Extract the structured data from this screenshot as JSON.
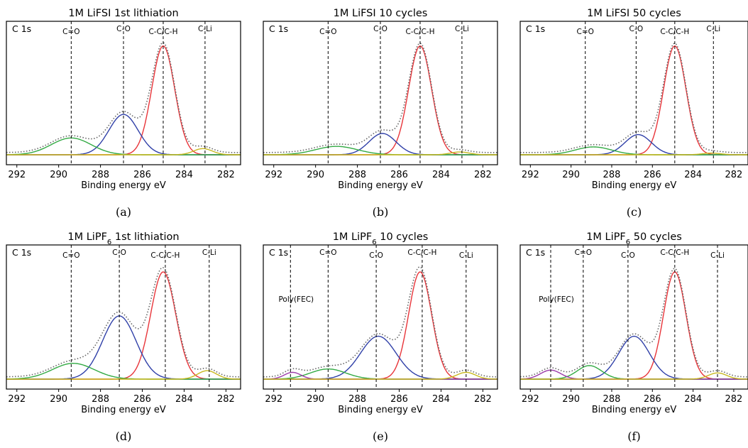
{
  "chart_data": [
    {
      "type": "line",
      "title": "1M LiFSI 1st lithiation",
      "caption": "(a)",
      "corner_label": "C 1s",
      "xlabel": "Binding energy eV",
      "xlim": [
        292.5,
        281.3
      ],
      "x_ticks": [
        "292",
        "290",
        "288",
        "286",
        "284",
        "282"
      ],
      "y_max": 1.0,
      "peak_lines": [
        {
          "label": "C=O",
          "x": 289.4
        },
        {
          "label": "C-O",
          "x": 286.9
        },
        {
          "label": "C-C/C-H",
          "x": 285.0
        },
        {
          "label": "C-Li",
          "x": 283.0
        }
      ],
      "series": [
        {
          "component": "C-C/C-H",
          "color": "#e8353a",
          "center": 285.0,
          "height": 0.97,
          "width": 0.55
        },
        {
          "component": "C-O",
          "color": "#3040a8",
          "center": 286.9,
          "height": 0.36,
          "width": 0.7
        },
        {
          "component": "C=O",
          "color": "#33aa44",
          "center": 289.4,
          "height": 0.15,
          "width": 0.95
        },
        {
          "component": "C-Li",
          "color": "#c8b820",
          "center": 283.1,
          "height": 0.055,
          "width": 0.45
        }
      ]
    },
    {
      "type": "line",
      "title": "1M LiFSI 10 cycles",
      "caption": "(b)",
      "corner_label": "C 1s",
      "xlabel": "Binding energy eV",
      "xlim": [
        292.5,
        281.3
      ],
      "x_ticks": [
        "292",
        "290",
        "288",
        "286",
        "284",
        "282"
      ],
      "y_max": 1.0,
      "peak_lines": [
        {
          "label": "C=O",
          "x": 289.4
        },
        {
          "label": "C-O",
          "x": 286.9
        },
        {
          "label": "C-C/C-H",
          "x": 285.0
        },
        {
          "label": "C-Li",
          "x": 283.0
        }
      ],
      "series": [
        {
          "component": "C-C/C-H",
          "color": "#e8353a",
          "center": 285.0,
          "height": 0.97,
          "width": 0.55
        },
        {
          "component": "C-O",
          "color": "#3040a8",
          "center": 286.8,
          "height": 0.19,
          "width": 0.65
        },
        {
          "component": "C=O",
          "color": "#33aa44",
          "center": 289.0,
          "height": 0.075,
          "width": 1.0
        },
        {
          "component": "C-Li",
          "color": "#c8b820",
          "center": 283.1,
          "height": 0.025,
          "width": 0.45
        }
      ]
    },
    {
      "type": "line",
      "title": "1M LiFSI 50 cycles",
      "caption": "(c)",
      "corner_label": "C 1s",
      "xlabel": "Binding energy eV",
      "xlim": [
        292.5,
        281.3
      ],
      "x_ticks": [
        "292",
        "290",
        "288",
        "286",
        "284",
        "282"
      ],
      "y_max": 1.0,
      "peak_lines": [
        {
          "label": "C=O",
          "x": 289.3
        },
        {
          "label": "C-O",
          "x": 286.8
        },
        {
          "label": "C-C/C-H",
          "x": 284.9
        },
        {
          "label": "C-Li",
          "x": 283.0
        }
      ],
      "series": [
        {
          "component": "C-C/C-H",
          "color": "#e8353a",
          "center": 284.9,
          "height": 0.97,
          "width": 0.55
        },
        {
          "component": "C-O",
          "color": "#3040a8",
          "center": 286.7,
          "height": 0.18,
          "width": 0.65
        },
        {
          "component": "C=O",
          "color": "#33aa44",
          "center": 288.9,
          "height": 0.07,
          "width": 0.9
        },
        {
          "component": "C-Li",
          "color": "#c8b820",
          "center": 283.1,
          "height": 0.015,
          "width": 0.45
        }
      ]
    },
    {
      "type": "line",
      "title": "1M LiPF",
      "title_sub": "6",
      "title_suffix": " 1st lithiation",
      "caption": "(d)",
      "corner_label": "C 1s",
      "xlabel": "Binding energy eV",
      "xlim": [
        292.5,
        281.3
      ],
      "x_ticks": [
        "292",
        "290",
        "288",
        "286",
        "284",
        "282"
      ],
      "y_max": 1.0,
      "peak_lines": [
        {
          "label": "C=O",
          "x": 289.4
        },
        {
          "label": "C-O",
          "x": 287.1
        },
        {
          "label": "C-C/C-H",
          "x": 284.9
        },
        {
          "label": "C-Li",
          "x": 282.8
        }
      ],
      "series": [
        {
          "component": "C-C/C-H",
          "color": "#e8353a",
          "center": 285.0,
          "height": 0.95,
          "width": 0.6
        },
        {
          "component": "C-O",
          "color": "#3040a8",
          "center": 287.1,
          "height": 0.56,
          "width": 0.8
        },
        {
          "component": "C=O",
          "color": "#33aa44",
          "center": 289.3,
          "height": 0.14,
          "width": 1.0
        },
        {
          "component": "C-Li",
          "color": "#c8b820",
          "center": 282.9,
          "height": 0.075,
          "width": 0.45
        }
      ]
    },
    {
      "type": "line",
      "title": "1M LiPF",
      "title_sub": "6",
      "title_suffix": " 10 cycles",
      "caption": "(e)",
      "corner_label": "C 1s",
      "xlabel": "Binding energy eV",
      "xlim": [
        292.5,
        281.3
      ],
      "x_ticks": [
        "292",
        "290",
        "288",
        "286",
        "284",
        "282"
      ],
      "y_max": 1.0,
      "peak_lines": [
        {
          "label": "Poly(FEC)",
          "x": 291.2
        },
        {
          "label": "C=O",
          "x": 289.4
        },
        {
          "label": "C-O",
          "x": 287.1
        },
        {
          "label": "C-C/C-H",
          "x": 284.9
        },
        {
          "label": "C-Li",
          "x": 282.8
        }
      ],
      "series": [
        {
          "component": "C-C/C-H",
          "color": "#e8353a",
          "center": 285.0,
          "height": 0.95,
          "width": 0.55
        },
        {
          "component": "C-O",
          "color": "#3040a8",
          "center": 287.0,
          "height": 0.38,
          "width": 0.85
        },
        {
          "component": "C=O",
          "color": "#33aa44",
          "center": 289.4,
          "height": 0.09,
          "width": 0.85
        },
        {
          "component": "Poly(FEC)",
          "color": "#9a3aa8",
          "center": 291.1,
          "height": 0.06,
          "width": 0.4
        },
        {
          "component": "C-Li",
          "color": "#c8b820",
          "center": 282.8,
          "height": 0.06,
          "width": 0.45
        }
      ]
    },
    {
      "type": "line",
      "title": "1M LiPF",
      "title_sub": "6",
      "title_suffix": " 50 cycles",
      "caption": "(f)",
      "corner_label": "C 1s",
      "xlabel": "Binding energy eV",
      "xlim": [
        292.5,
        281.3
      ],
      "x_ticks": [
        "292",
        "290",
        "288",
        "286",
        "284",
        "282"
      ],
      "y_max": 1.0,
      "peak_lines": [
        {
          "label": "Poly(FEC)",
          "x": 291.0
        },
        {
          "label": "C=O",
          "x": 289.4
        },
        {
          "label": "C-O",
          "x": 287.2
        },
        {
          "label": "C-C/C-H",
          "x": 284.9
        },
        {
          "label": "C-Li",
          "x": 282.8
        }
      ],
      "series": [
        {
          "component": "C-C/C-H",
          "color": "#e8353a",
          "center": 284.9,
          "height": 0.95,
          "width": 0.55
        },
        {
          "component": "C-O",
          "color": "#3040a8",
          "center": 286.9,
          "height": 0.38,
          "width": 0.75
        },
        {
          "component": "C=O",
          "color": "#33aa44",
          "center": 289.1,
          "height": 0.12,
          "width": 0.6
        },
        {
          "component": "Poly(FEC)",
          "color": "#9a3aa8",
          "center": 291.0,
          "height": 0.08,
          "width": 0.5
        },
        {
          "component": "C-Li",
          "color": "#c8b820",
          "center": 282.8,
          "height": 0.055,
          "width": 0.45
        }
      ]
    }
  ]
}
